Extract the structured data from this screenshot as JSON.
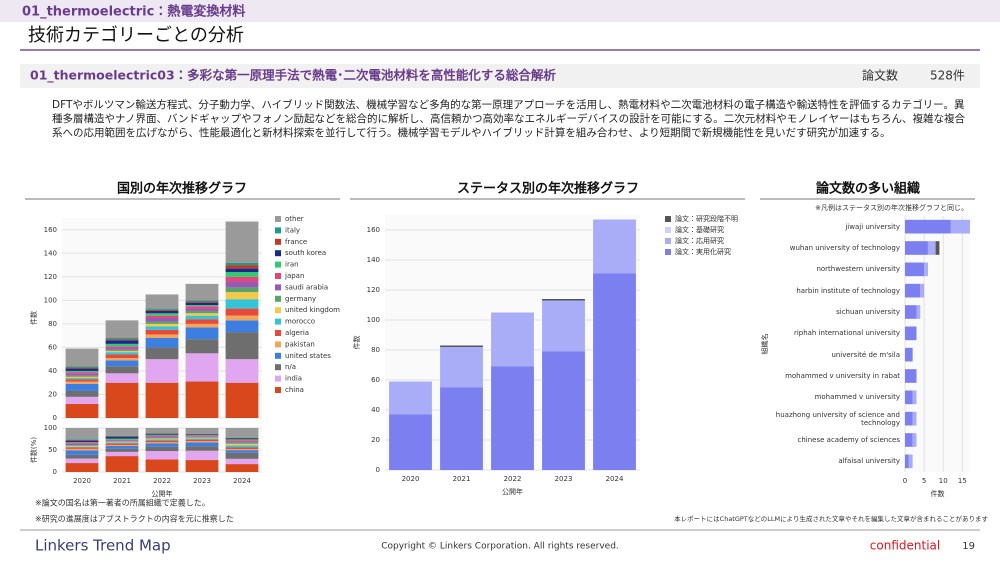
{
  "header": {
    "category": "01_thermoelectric：熱電変換材料",
    "title": "技術カテゴリーごとの分析"
  },
  "section": {
    "title": "01_thermoelectric03：多彩な第一原理手法で熱電･二次電池材料を高性能化する総合解析",
    "count_label": "論文数",
    "count": "528件",
    "description": "DFTやボルツマン輸送方程式、分子動力学、ハイブリッド関数法、機械学習など多角的な第一原理アプローチを活用し、熱電材料や二次電池材料の電子構造や輸送特性を評価するカテゴリー。異種多層構造やナノ界面、バンドギャップやフォノン励起などを総合的に解析し、高信頼かつ高効率なエネルギーデバイスの設計を可能にする。二次元材料やモノレイヤーはもちろん、複雑な複合系への応用範囲を広げながら、性能最適化と新材料探索を並行して行う。機械学習モデルやハイブリッド計算を組み合わせ、より短期間で新規機能性を見いだす研究が加速する。"
  },
  "notes": [
    "※論文の国名は第一著者の所属組織で定義した。",
    "※研究の進展度はアブストラクトの内容を元に推察した",
    "本レポートにはChatGPTなどのLLMにより生成された文章やそれを編集した文章が含まれることがあります"
  ],
  "footer": {
    "brand": "Linkers Trend Map",
    "copyright": "Copyright © Linkers Corporation. All rights reserved.",
    "confidential": "confidential",
    "page": "19"
  },
  "chart_data": [
    {
      "type": "stacked_bar",
      "title": "国別の年次推移グラフ",
      "x_label": "公開年",
      "y_label": "件数",
      "pct_y_label": "件数(%)",
      "categories": [
        "2020",
        "2021",
        "2022",
        "2023",
        "2024"
      ],
      "ylim": [
        0,
        170
      ],
      "yticks": [
        0,
        20,
        40,
        60,
        80,
        100,
        120,
        140,
        160
      ],
      "pct_ylim": [
        0,
        100
      ],
      "pct_yticks": [
        0,
        50,
        100
      ],
      "grid": true,
      "series": [
        {
          "name": "china",
          "color": "#d9481c",
          "values": [
            12,
            30,
            30,
            31,
            30
          ]
        },
        {
          "name": "india",
          "color": "#e0a6f0",
          "values": [
            6,
            8,
            20,
            24,
            20
          ]
        },
        {
          "name": "n/a",
          "color": "#6e6e6e",
          "values": [
            5,
            6,
            10,
            12,
            23
          ]
        },
        {
          "name": "united states",
          "color": "#3d7fe0",
          "values": [
            6,
            5,
            8,
            10,
            10
          ]
        },
        {
          "name": "pakistan",
          "color": "#f2a65a",
          "values": [
            2,
            2,
            3,
            3,
            4
          ]
        },
        {
          "name": "algeria",
          "color": "#e84a3a",
          "values": [
            2,
            3,
            4,
            4,
            6
          ]
        },
        {
          "name": "morocco",
          "color": "#33c4d8",
          "values": [
            1,
            2,
            3,
            3,
            8
          ]
        },
        {
          "name": "united kingdom",
          "color": "#f7c948",
          "values": [
            1,
            1,
            2,
            2,
            6
          ]
        },
        {
          "name": "germany",
          "color": "#5aa469",
          "values": [
            1,
            1,
            2,
            2,
            4
          ]
        },
        {
          "name": "saudi arabia",
          "color": "#9b59b6",
          "values": [
            2,
            2,
            3,
            2,
            5
          ]
        },
        {
          "name": "japan",
          "color": "#e8437a",
          "values": [
            1,
            1,
            2,
            2,
            4
          ]
        },
        {
          "name": "iran",
          "color": "#2ecc71",
          "values": [
            1,
            2,
            2,
            1,
            4
          ]
        },
        {
          "name": "south korea",
          "color": "#1a2a8c",
          "values": [
            2,
            3,
            2,
            2,
            3
          ]
        },
        {
          "name": "france",
          "color": "#c0392b",
          "values": [
            1,
            1,
            1,
            1,
            3
          ]
        },
        {
          "name": "italy",
          "color": "#16a085",
          "values": [
            1,
            1,
            1,
            1,
            2
          ]
        },
        {
          "name": "other",
          "color": "#9a9a9a",
          "values": [
            15,
            15,
            12,
            14,
            35
          ]
        }
      ]
    },
    {
      "type": "stacked_bar",
      "title": "ステータス別の年次推移グラフ",
      "x_label": "公開年",
      "y_label": "件数",
      "categories": [
        "2020",
        "2021",
        "2022",
        "2023",
        "2024"
      ],
      "ylim": [
        0,
        170
      ],
      "yticks": [
        0,
        20,
        40,
        60,
        80,
        100,
        120,
        140,
        160
      ],
      "grid": true,
      "series": [
        {
          "name": "論文：実用化研究",
          "color": "#7b7ff0",
          "values": [
            37,
            55,
            69,
            79,
            131
          ]
        },
        {
          "name": "論文：応用研究",
          "color": "#a9acf6",
          "values": [
            22,
            27,
            36,
            34,
            36
          ]
        },
        {
          "name": "論文：基礎研究",
          "color": "#cfd1fa",
          "values": [
            0,
            0,
            0,
            0,
            0
          ]
        },
        {
          "name": "論文：研究段階不明",
          "color": "#555555",
          "values": [
            0,
            1,
            0,
            1,
            0
          ]
        }
      ]
    },
    {
      "type": "stacked_hbar",
      "title": "論文数の多い組織",
      "note": "※凡例はステータス別の年次推移グラフと同じ。",
      "x_label": "件数",
      "y_label": "組織名",
      "categories": [
        "jiwaji university",
        "wuhan university of technology",
        "northwestern university",
        "harbin institute of technology",
        "sichuan university",
        "riphah international university",
        "université de m'sila",
        "mohammed v university in rabat",
        "mohammed v university",
        "huazhong university of science and technology",
        "chinese academy of sciences",
        "alfaisal university"
      ],
      "xlim": [
        0,
        17
      ],
      "xticks": [
        0,
        5,
        10,
        15
      ],
      "grid": true,
      "series": [
        {
          "color": "#7b7ff0",
          "values": [
            12,
            6,
            5,
            4,
            3,
            3,
            2,
            3,
            2,
            2,
            2,
            1
          ]
        },
        {
          "color": "#a9acf6",
          "values": [
            5,
            2,
            1,
            1,
            1,
            0,
            0,
            0,
            1,
            1,
            1,
            1
          ]
        },
        {
          "color": "#555555",
          "values": [
            0,
            1,
            0,
            0,
            0,
            0,
            0,
            0,
            0,
            0,
            0,
            0
          ]
        }
      ]
    }
  ]
}
